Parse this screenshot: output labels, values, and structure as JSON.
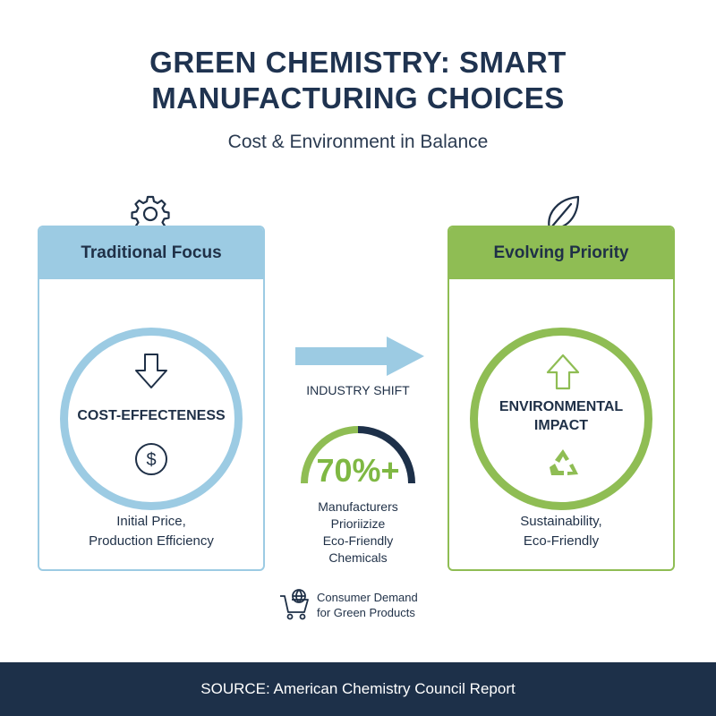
{
  "header": {
    "title_line1": "GREEN CHEMISTRY: SMART",
    "title_line2": "MANUFACTURING CHOICES",
    "subtitle": "Cost & Environment in Balance"
  },
  "left_panel": {
    "heading": "Traditional Focus",
    "ring_label": "COST-EFFECTENESS",
    "caption_line1": "Initial Price,",
    "caption_line2": "Production Efficiency",
    "icons": [
      "gear-icon",
      "arrow-down-icon",
      "dollar-icon"
    ],
    "accent": "#9ccbe3"
  },
  "right_panel": {
    "heading": "Evolving Priority",
    "ring_label_line1": "ENVIRONMENTAL",
    "ring_label_line2": "IMPACT",
    "caption_line1": "Sustainability,",
    "caption_line2": "Eco-Friendly",
    "icons": [
      "leaf-icon",
      "arrow-up-icon",
      "recycle-icon"
    ],
    "accent": "#8fbd54"
  },
  "center": {
    "shift_label": "INDUSTRY SHIFT",
    "stat": "70%+",
    "stat_caption_line1": "Manufacturers",
    "stat_caption_line2": "Prioriizize",
    "stat_caption_line3": "Eco-Friendly",
    "stat_caption_line4": "Chemicals",
    "demand_line1": "Consumer Demand",
    "demand_line2": "for Green Products",
    "icons": [
      "arrow-right-icon",
      "gauge-icon",
      "cart-globe-icon"
    ]
  },
  "footer": {
    "source": "SOURCE: American Chemistry Council Report"
  },
  "colors": {
    "navy": "#1d3049",
    "blue": "#9ccbe3",
    "green": "#8fbd54",
    "stat_green": "#7fb843"
  }
}
